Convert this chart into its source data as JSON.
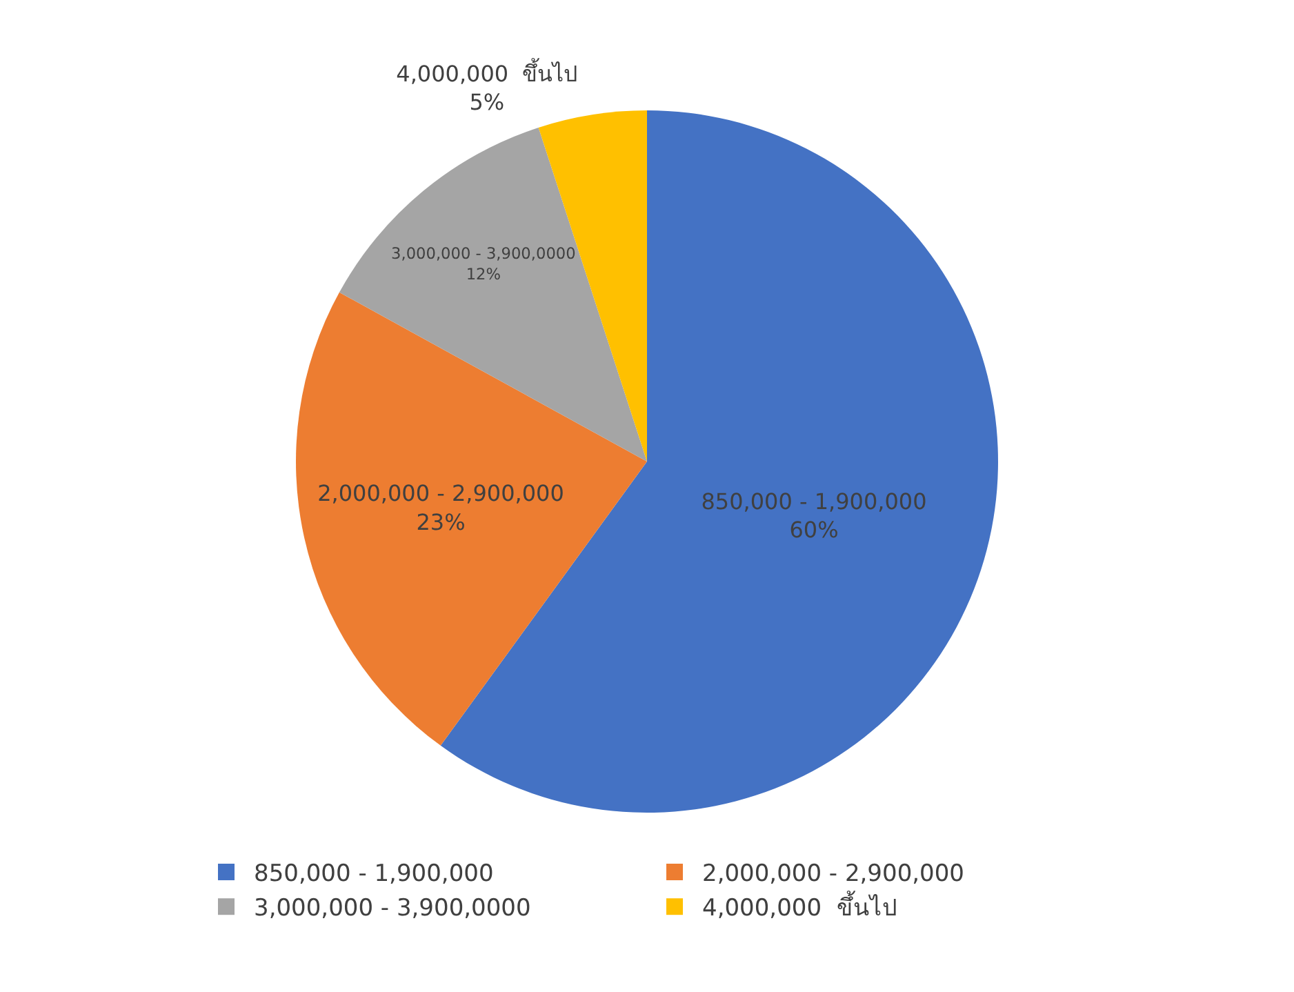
{
  "chart_data": {
    "type": "pie",
    "categories": [
      "850,000 - 1,900,000",
      "2,000,000 - 2,900,000",
      "3,000,000 - 3,900,0000",
      "4,000,000  ขึ้นไป"
    ],
    "values": [
      60,
      23,
      12,
      5
    ],
    "value_labels": [
      "60%",
      "23%",
      "12%",
      "5%"
    ],
    "colors": [
      "#4472c4",
      "#ed7d31",
      "#a5a5a5",
      "#ffc000"
    ],
    "legend": "bottom"
  }
}
